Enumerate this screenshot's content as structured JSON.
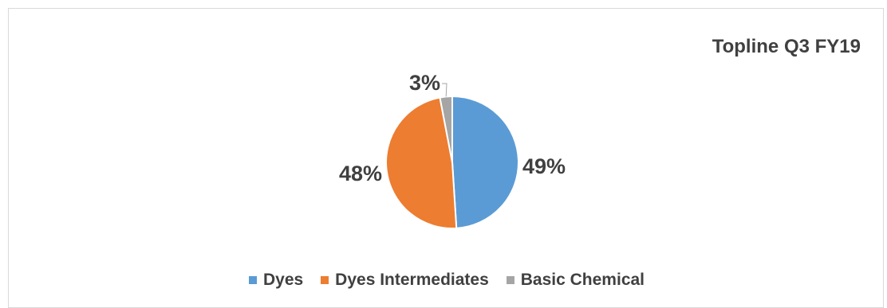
{
  "chart_data": {
    "type": "pie",
    "title": "Topline Q3 FY19",
    "categories": [
      "Dyes",
      "Dyes Intermediates",
      "Basic Chemical"
    ],
    "values": [
      49,
      48,
      3
    ],
    "data_labels": [
      "49%",
      "48%",
      "3%"
    ],
    "colors": [
      "#5b9bd5",
      "#ed7d31",
      "#a5a5a5"
    ],
    "legend_position": "bottom",
    "start_angle": "top",
    "direction": "clockwise"
  }
}
